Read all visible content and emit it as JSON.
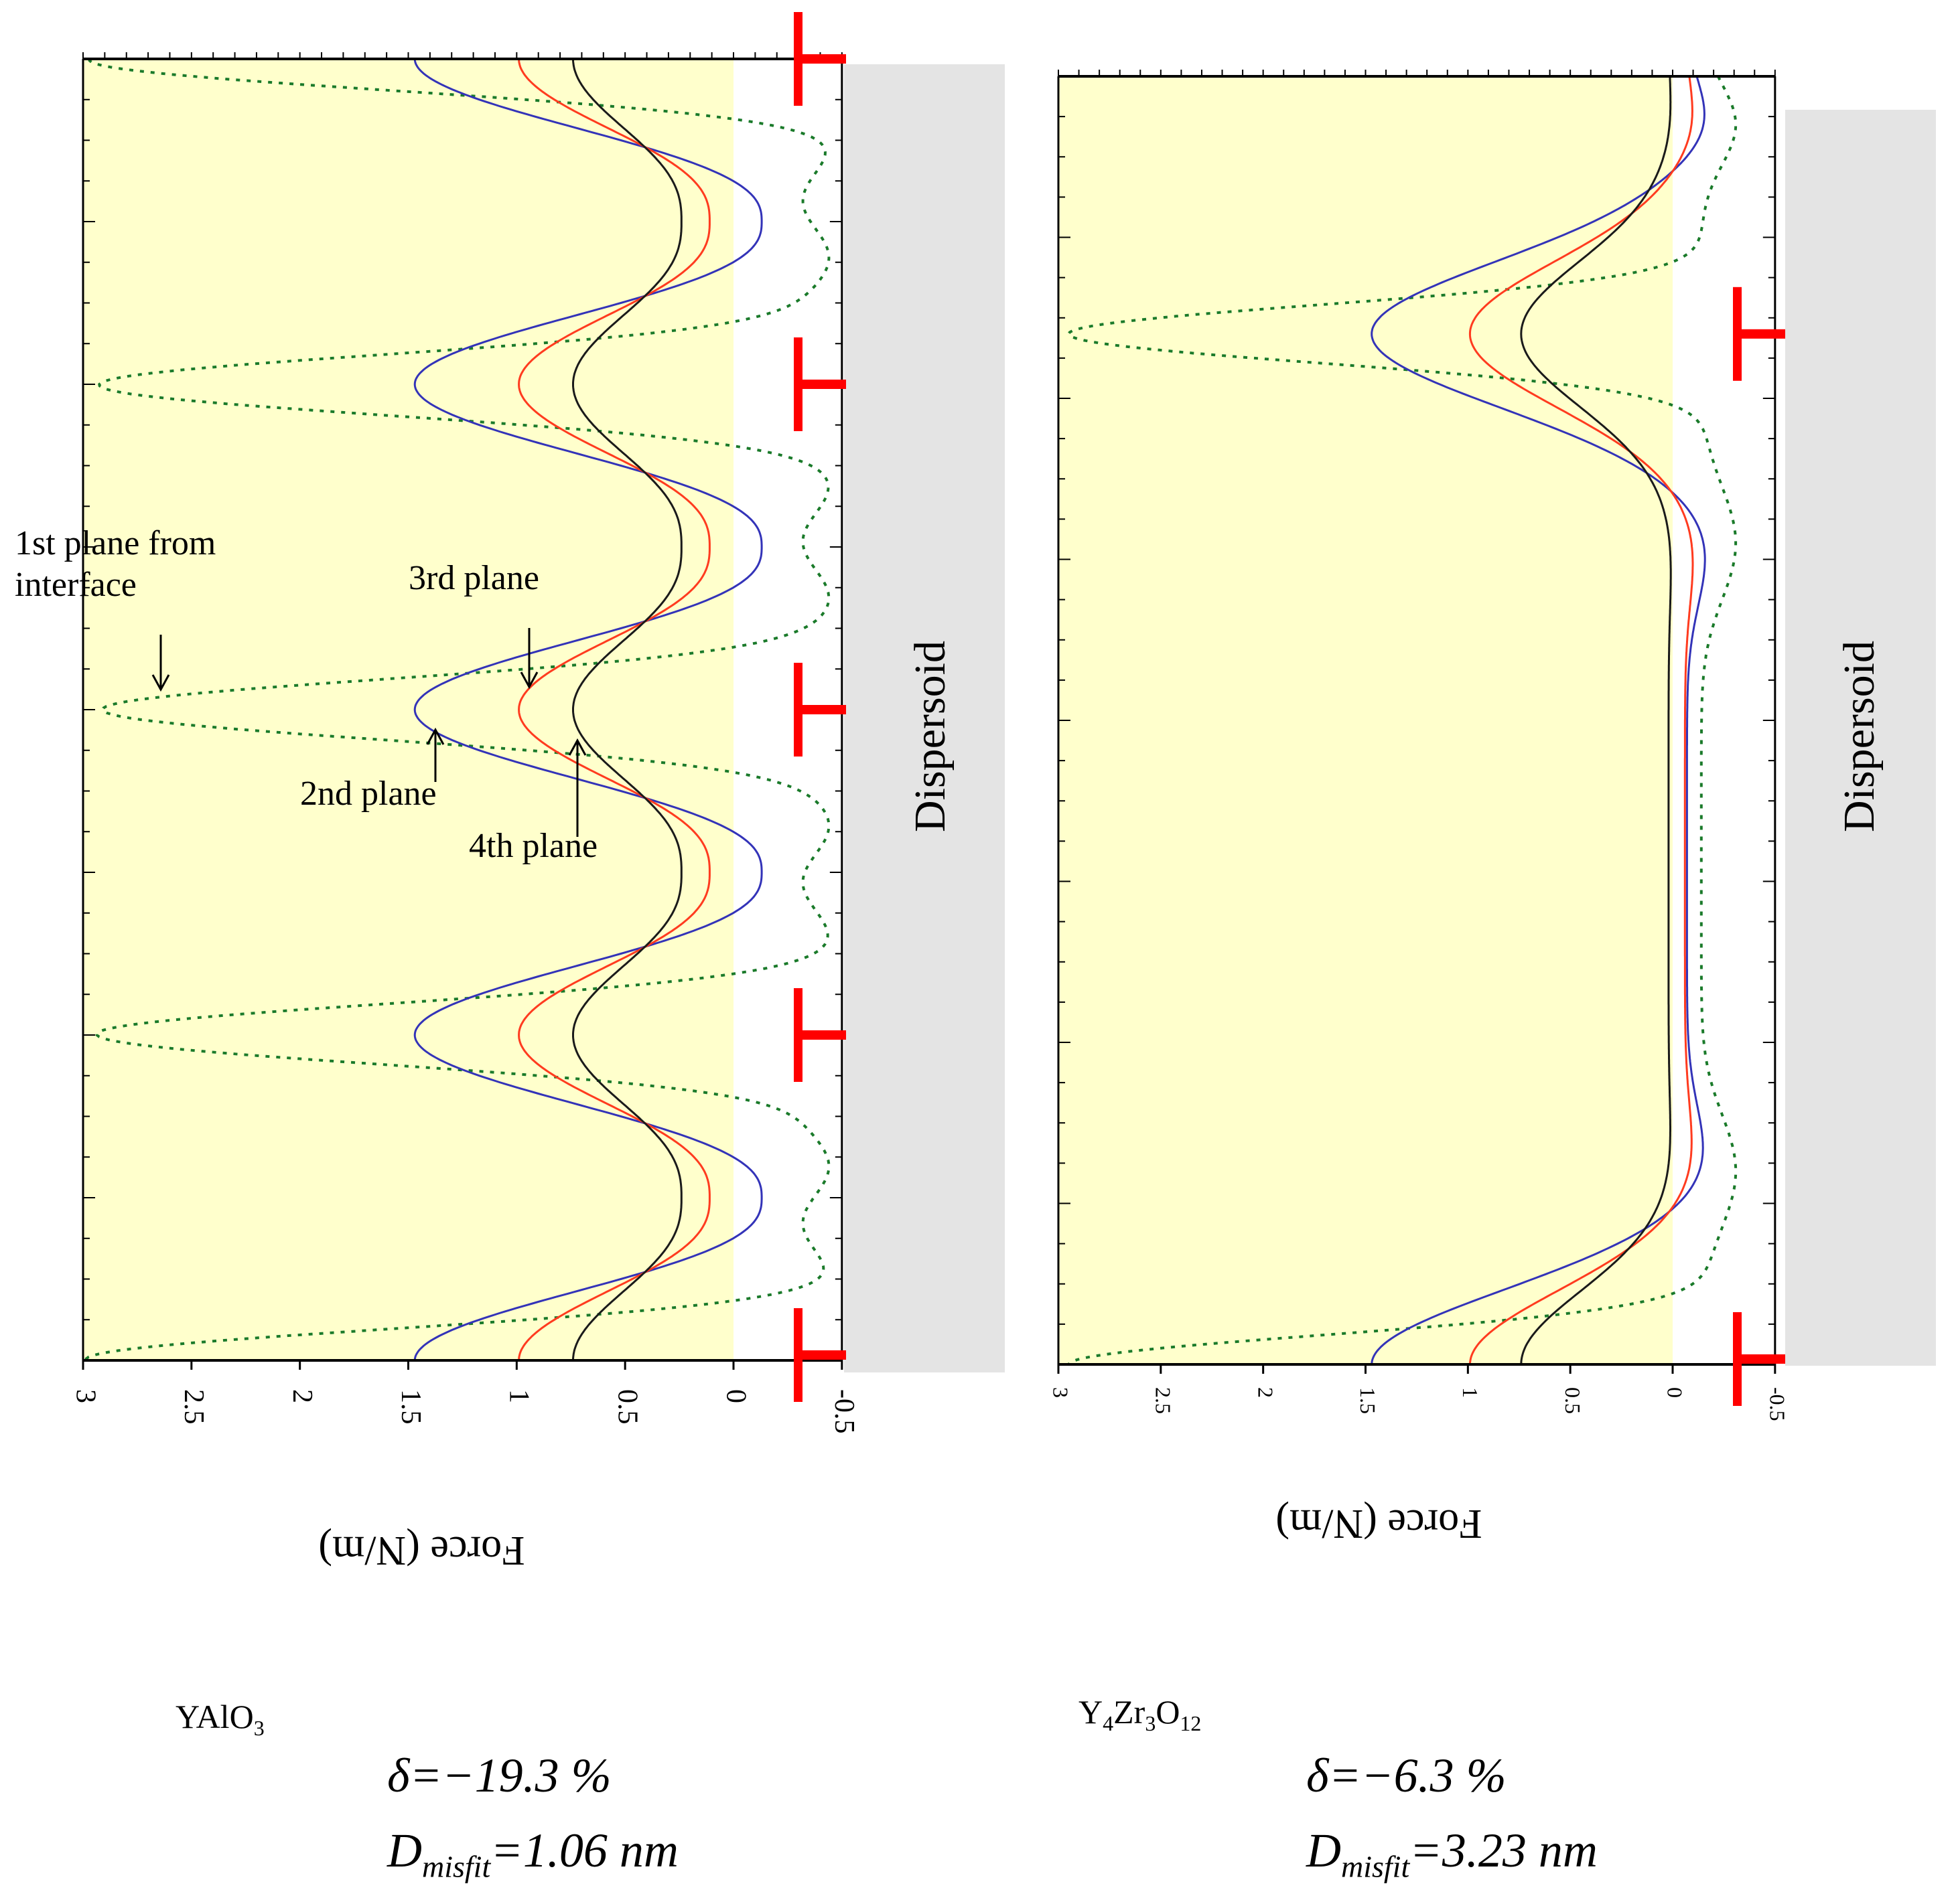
{
  "chart_data": [
    {
      "type": "line",
      "panel": "left",
      "material": "YAlO3",
      "xlabel": "Force (N/m)",
      "xlim": [
        3,
        -0.5
      ],
      "x_ticks": [
        "3",
        "2.5",
        "2",
        "1.5",
        "1",
        "0.5",
        "0",
        "-0.5"
      ],
      "x_tick_values": [
        3,
        2.5,
        2,
        1.5,
        1,
        0.5,
        0,
        -0.5
      ],
      "y_period": 2,
      "ylim": [
        0,
        8
      ],
      "dispersoid_label": "Dispersoid",
      "dislocation_symbol": "⊤",
      "dislocation_positions": [
        0,
        2,
        4,
        6,
        8
      ],
      "annotations": [
        "1st plane from interface",
        "2nd plane",
        "3rd plane",
        "4th plane"
      ],
      "series": [
        {
          "name": "1st plane from interface",
          "style": "dotted",
          "color": "#1a7a2a",
          "min": -0.38,
          "max": 2.97,
          "sharp": true
        },
        {
          "name": "2nd plane",
          "style": "solid",
          "color": "#3333b8",
          "min": -0.13,
          "max": 1.47
        },
        {
          "name": "3rd plane",
          "style": "solid",
          "color": "#ff3b1f",
          "min": 0.11,
          "max": 0.99
        },
        {
          "name": "4th plane",
          "style": "solid",
          "color": "#1a1a1a",
          "min": 0.24,
          "max": 0.74
        }
      ]
    },
    {
      "type": "line",
      "panel": "right",
      "material": "Y4Zr3O12",
      "xlabel": "Force (N/m)",
      "xlim": [
        3,
        -0.5
      ],
      "x_ticks": [
        "3",
        "2.5",
        "2",
        "1.5",
        "1",
        "0.5",
        "0",
        "-0.5"
      ],
      "x_tick_values": [
        3,
        2.5,
        2,
        1.5,
        1,
        0.5,
        0,
        -0.5
      ],
      "ylim": [
        0,
        8
      ],
      "dispersoid_label": "Dispersoid",
      "dislocation_symbol": "⊤",
      "dislocation_positions": [
        1.6,
        8
      ],
      "series": [
        {
          "name": "1st plane from interface",
          "style": "dotted",
          "color": "#1a7a2a",
          "peak": 2.95,
          "trough": -0.35,
          "base": -0.14
        },
        {
          "name": "2nd plane",
          "style": "solid",
          "color": "#3333b8",
          "peak": 1.47,
          "trough": -0.2,
          "base": -0.07
        },
        {
          "name": "3rd plane",
          "style": "solid",
          "color": "#ff3b1f",
          "peak": 0.99,
          "trough": -0.12,
          "base": -0.06
        },
        {
          "name": "4th plane",
          "style": "solid",
          "color": "#1a1a1a",
          "peak": 0.74,
          "trough": 0.0,
          "base": 0.02
        }
      ]
    }
  ],
  "captions": {
    "left": {
      "material_base": "YAlO",
      "material_sub": "3",
      "delta": "δ=−19.3 %",
      "dmisfit_prefix": "D",
      "dmisfit_sub": "misfit",
      "dmisfit_value": "=1.06 nm"
    },
    "right": {
      "material_p1": "Y",
      "material_s1": "4",
      "material_p2": "Zr",
      "material_s2": "3",
      "material_p3": "O",
      "material_s3": "12",
      "delta": "δ=−6.3 %",
      "dmisfit_prefix": "D",
      "dmisfit_sub": "misfit",
      "dmisfit_value": "=3.23 nm"
    }
  },
  "colors": {
    "shade": "#ffffcc",
    "dispersoid": "#e4e4e4",
    "dislocation": "#ff0000"
  }
}
